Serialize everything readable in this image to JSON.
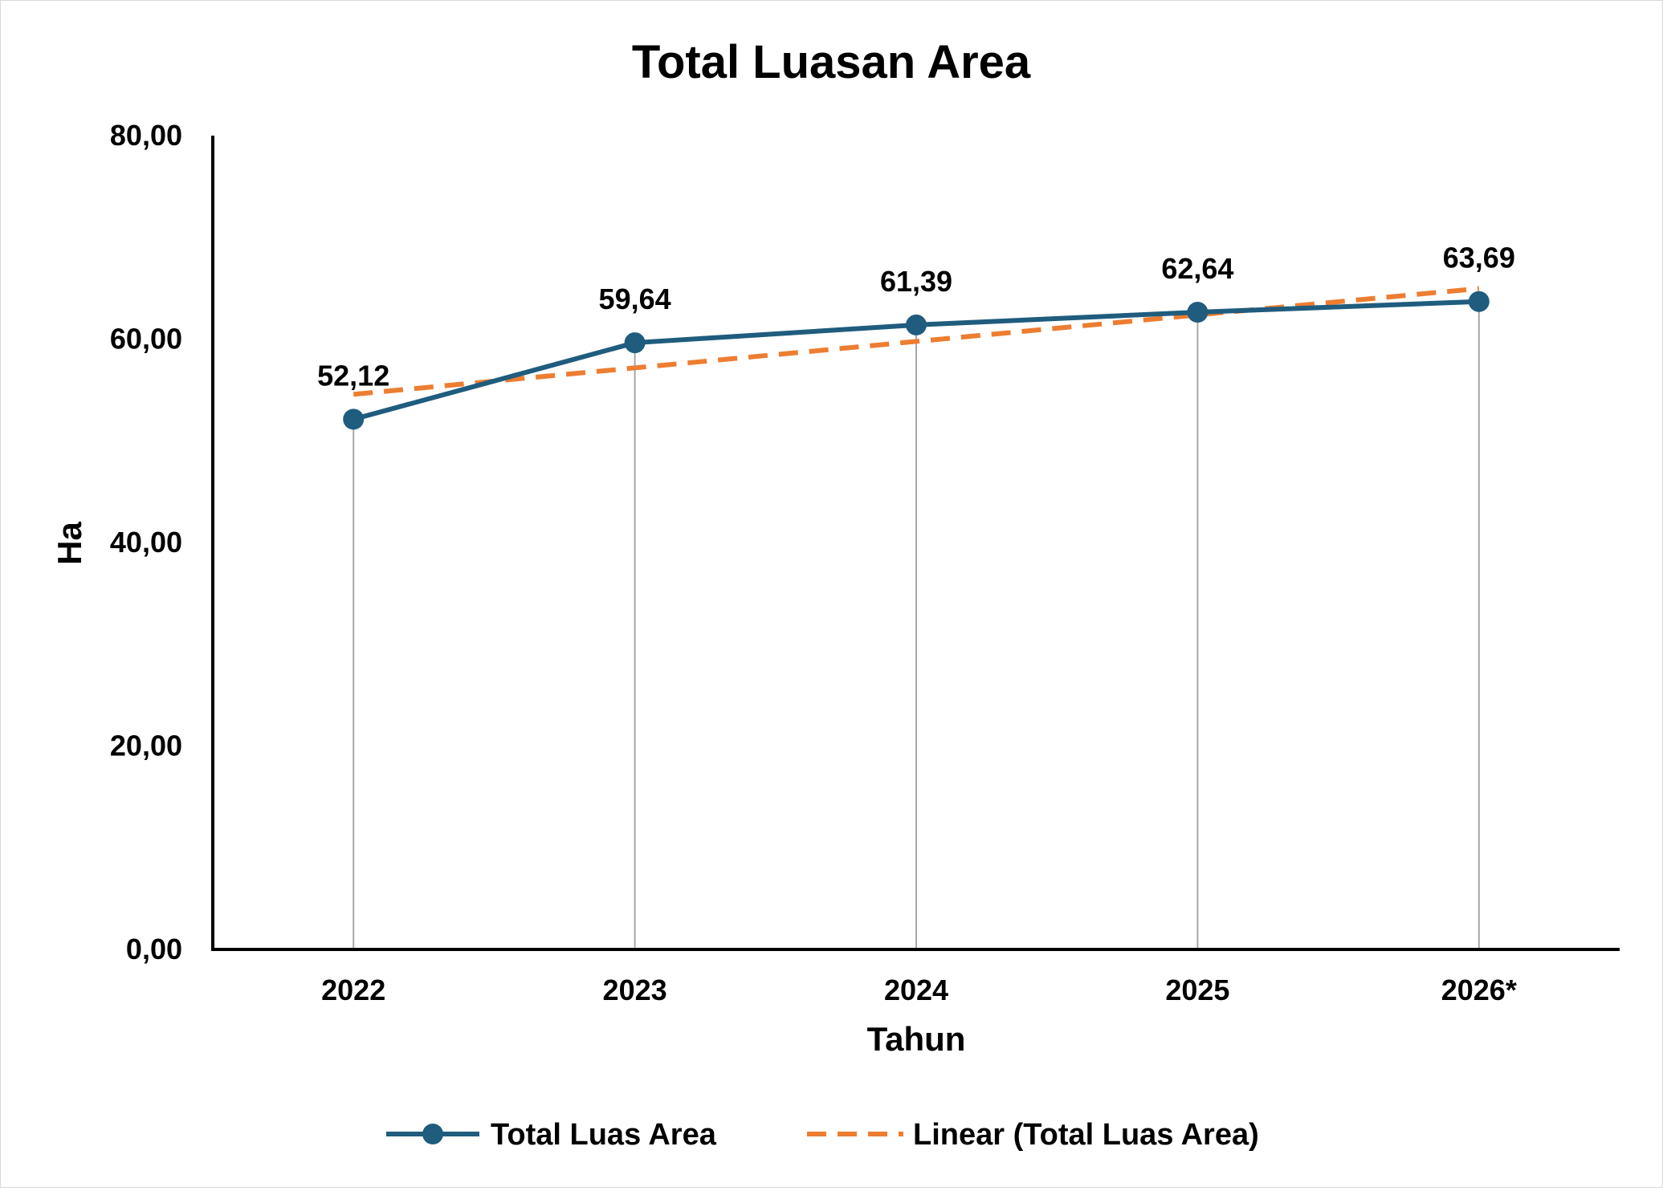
{
  "chart_data": {
    "type": "line",
    "title": "Total Luasan Area",
    "xlabel": "Tahun",
    "ylabel": "Ha",
    "categories": [
      "2022",
      "2023",
      "2024",
      "2025",
      "2026*"
    ],
    "series": [
      {
        "name": "Total Luas Area",
        "values": [
          52.12,
          59.64,
          61.39,
          62.64,
          63.69
        ],
        "labels": [
          "52,12",
          "59,64",
          "61,39",
          "62,64",
          "63,69"
        ],
        "color": "#1f5c7e",
        "marker": "circle",
        "line_style": "solid"
      },
      {
        "name": "Linear (Total Luas Area)",
        "trendline_of": "Total Luas Area",
        "values": [
          54.57,
          57.17,
          59.77,
          62.37,
          64.97
        ],
        "color": "#ed7d31",
        "line_style": "dashed"
      }
    ],
    "ylim": [
      0,
      80
    ],
    "yticks": [
      0,
      20,
      40,
      60,
      80
    ],
    "ytick_labels": [
      "0,00",
      "20,00",
      "40,00",
      "60,00",
      "80,00"
    ],
    "grid": "vertical drop lines at each category",
    "legend": "bottom"
  }
}
